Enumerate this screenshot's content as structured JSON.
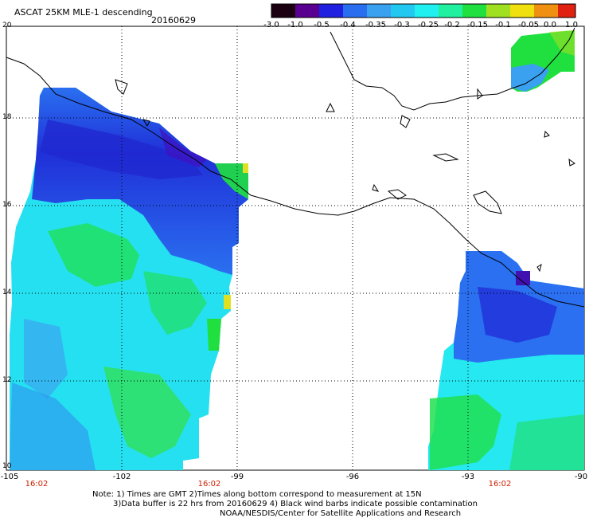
{
  "title": "ASCAT 25KM MLE-1 descending",
  "date": "20160629",
  "colorbar": {
    "labels": [
      "-3.0",
      "-1.0",
      "-0.5",
      "-0.4",
      "-0.35",
      "-0.3",
      "-0.25",
      "-0.2",
      "-0.15",
      "-0.1",
      "-0.05",
      "0.0",
      "1.0"
    ],
    "colors": [
      "#1a0010",
      "#5a0090",
      "#2020e0",
      "#2a6ef0",
      "#3aa0f0",
      "#22c8f0",
      "#20f0f0",
      "#20f0a0",
      "#20e040",
      "#a0e020",
      "#f0e010",
      "#f09010",
      "#e02010"
    ]
  },
  "axes": {
    "lat_labels": [
      "20",
      "18",
      "16",
      "14",
      "12",
      "10"
    ],
    "lon_labels": [
      "-105",
      "-102",
      "-99",
      "-96",
      "-93",
      "-90"
    ],
    "time_labels": [
      "16:02",
      "16:02",
      "16:02"
    ]
  },
  "notes": [
    "Note: 1) Times are GMT 2)Times along bottom correspond to measurement at 15N",
    "3)Data buffer is 22 hrs from 20160629 4) Black wind barbs indicate possible contamination",
    "NOAA/NESDIS/Center for Satellite Applications and Research"
  ]
}
